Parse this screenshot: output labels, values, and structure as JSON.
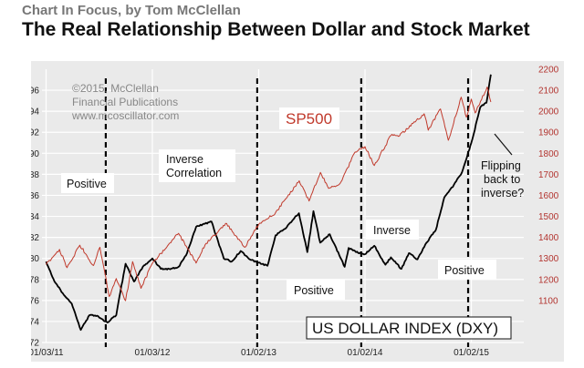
{
  "header": {
    "kicker": "Chart In Focus, by Tom McClellan",
    "title": "The Real Relationship Between Dollar and Stock Market"
  },
  "colors": {
    "plot_bg": "#eaeaea",
    "frame_bg": "#ffffff",
    "dxy_line": "#000000",
    "sp500_line": "#c0392b",
    "right_axis": "#b2332e",
    "grid": "#ffffff"
  },
  "chart_data": {
    "type": "line",
    "grid": true,
    "x_tick_labels": [
      "01/03/11",
      "01/03/12",
      "01/02/13",
      "01/02/14",
      "01/02/15"
    ],
    "x_tick_dates": [
      "2011-01-03",
      "2012-01-03",
      "2013-01-02",
      "2014-01-02",
      "2015-01-02"
    ],
    "xlim": [
      "2010-12-20",
      "2015-07-01"
    ],
    "left_axis": {
      "ylim": [
        72,
        98
      ],
      "ticks": [
        72,
        74,
        76,
        78,
        80,
        82,
        84,
        86,
        88,
        90,
        92,
        94,
        96
      ]
    },
    "right_axis": {
      "ylim": [
        900,
        2200
      ],
      "ticks": [
        1100,
        1200,
        1300,
        1400,
        1500,
        1600,
        1700,
        1800,
        1900,
        2000,
        2100,
        2200
      ]
    },
    "series": [
      {
        "name": "US DOLLAR INDEX (DXY)",
        "axis": "left",
        "points": [
          [
            "2011-01-03",
            79.7
          ],
          [
            "2011-02-01",
            77.8
          ],
          [
            "2011-03-01",
            76.7
          ],
          [
            "2011-04-01",
            75.7
          ],
          [
            "2011-05-02",
            73.2
          ],
          [
            "2011-06-01",
            74.6
          ],
          [
            "2011-07-01",
            74.5
          ],
          [
            "2011-08-01",
            73.9
          ],
          [
            "2011-09-01",
            74.6
          ],
          [
            "2011-09-15",
            76.8
          ],
          [
            "2011-10-03",
            79.5
          ],
          [
            "2011-11-01",
            77.8
          ],
          [
            "2011-12-01",
            79.2
          ],
          [
            "2012-01-03",
            80.0
          ],
          [
            "2012-02-01",
            79.0
          ],
          [
            "2012-03-01",
            79.0
          ],
          [
            "2012-04-02",
            79.2
          ],
          [
            "2012-05-01",
            80.5
          ],
          [
            "2012-06-01",
            83.0
          ],
          [
            "2012-07-24",
            83.5
          ],
          [
            "2012-09-04",
            80.0
          ],
          [
            "2012-10-01",
            79.7
          ],
          [
            "2012-11-01",
            80.7
          ],
          [
            "2012-12-03",
            79.9
          ],
          [
            "2013-01-02",
            79.6
          ],
          [
            "2013-02-01",
            79.3
          ],
          [
            "2013-03-01",
            82.2
          ],
          [
            "2013-04-01",
            82.8
          ],
          [
            "2013-05-20",
            84.3
          ],
          [
            "2013-06-18",
            80.6
          ],
          [
            "2013-07-09",
            84.5
          ],
          [
            "2013-08-01",
            81.5
          ],
          [
            "2013-09-03",
            82.3
          ],
          [
            "2013-10-24",
            79.2
          ],
          [
            "2013-11-07",
            81.0
          ],
          [
            "2013-12-02",
            80.6
          ],
          [
            "2014-01-02",
            80.4
          ],
          [
            "2014-02-03",
            81.2
          ],
          [
            "2014-03-13",
            79.4
          ],
          [
            "2014-04-01",
            80.1
          ],
          [
            "2014-05-07",
            79.0
          ],
          [
            "2014-06-02",
            80.5
          ],
          [
            "2014-07-01",
            79.9
          ],
          [
            "2014-08-01",
            81.5
          ],
          [
            "2014-09-02",
            82.7
          ],
          [
            "2014-10-01",
            85.8
          ],
          [
            "2014-11-03",
            87.0
          ],
          [
            "2014-12-01",
            88.2
          ],
          [
            "2015-01-02",
            91.0
          ],
          [
            "2015-02-02",
            94.4
          ],
          [
            "2015-02-23",
            94.8
          ],
          [
            "2015-03-10",
            97.5
          ]
        ]
      },
      {
        "name": "SP500",
        "axis": "right",
        "points": [
          [
            "2011-01-03",
            1271
          ],
          [
            "2011-02-18",
            1343
          ],
          [
            "2011-03-16",
            1256
          ],
          [
            "2011-04-29",
            1363
          ],
          [
            "2011-06-15",
            1266
          ],
          [
            "2011-07-07",
            1353
          ],
          [
            "2011-08-08",
            1119
          ],
          [
            "2011-09-01",
            1204
          ],
          [
            "2011-10-03",
            1099
          ],
          [
            "2011-10-27",
            1285
          ],
          [
            "2011-11-25",
            1158
          ],
          [
            "2012-01-03",
            1277
          ],
          [
            "2012-02-01",
            1324
          ],
          [
            "2012-04-02",
            1419
          ],
          [
            "2012-06-01",
            1278
          ],
          [
            "2012-07-02",
            1365
          ],
          [
            "2012-09-14",
            1466
          ],
          [
            "2012-11-15",
            1353
          ],
          [
            "2013-01-02",
            1462
          ],
          [
            "2013-03-01",
            1518
          ],
          [
            "2013-05-21",
            1669
          ],
          [
            "2013-06-24",
            1573
          ],
          [
            "2013-08-02",
            1709
          ],
          [
            "2013-08-30",
            1633
          ],
          [
            "2013-10-08",
            1656
          ],
          [
            "2013-11-29",
            1806
          ],
          [
            "2014-01-02",
            1832
          ],
          [
            "2014-02-03",
            1742
          ],
          [
            "2014-04-01",
            1885
          ],
          [
            "2014-05-01",
            1884
          ],
          [
            "2014-07-24",
            1988
          ],
          [
            "2014-08-07",
            1910
          ],
          [
            "2014-09-18",
            2011
          ],
          [
            "2014-10-15",
            1862
          ],
          [
            "2014-11-28",
            2067
          ],
          [
            "2014-12-16",
            1972
          ],
          [
            "2015-01-02",
            2058
          ],
          [
            "2015-01-15",
            1992
          ],
          [
            "2015-02-25",
            2115
          ],
          [
            "2015-03-10",
            2044
          ]
        ]
      }
    ],
    "dashed_lines": [
      "2011-07-27",
      "2012-12-28",
      "2013-12-20",
      "2014-12-22"
    ],
    "annotations": {
      "copyright": [
        "©2015, McClellan",
        "Financial Publications",
        "www.mcoscillator.com"
      ],
      "positive_1": "Positive",
      "inverse_correlation": [
        "Inverse",
        "Correlation"
      ],
      "positive_2": "Positive",
      "inverse": "Inverse",
      "positive_3": "Positive",
      "flipping": [
        "Flipping",
        "back to",
        "inverse?"
      ],
      "sp500_label": "SP500",
      "dxy_label": "US DOLLAR INDEX (DXY)"
    }
  }
}
